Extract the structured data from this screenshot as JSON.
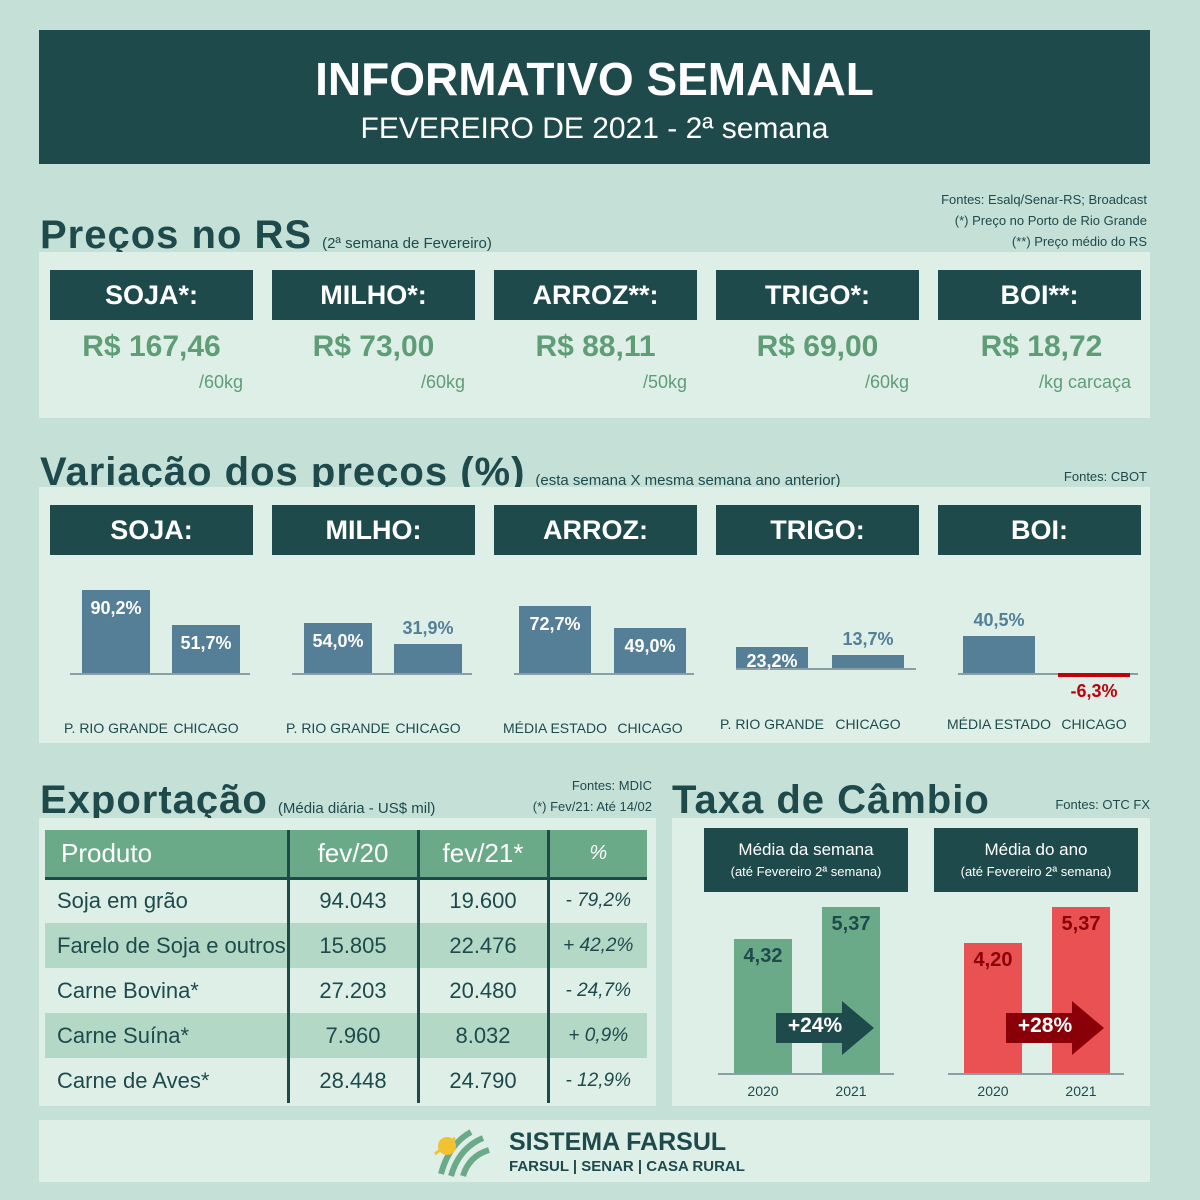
{
  "header": {
    "title": "INFORMATIVO SEMANAL",
    "subtitle": "FEVEREIRO DE 2021 - 2ª semana"
  },
  "prices": {
    "title": "Preços no RS",
    "note": "(2ª semana de Fevereiro)",
    "sources": [
      "Fontes: Esalq/Senar-RS; Broadcast",
      "(*) Preço no Porto de Rio Grande",
      "(**) Preço médio do RS"
    ],
    "items": [
      {
        "name": "SOJA*:",
        "price": "R$ 167,46",
        "unit": "/60kg"
      },
      {
        "name": "MILHO*:",
        "price": "R$ 73,00",
        "unit": "/60kg"
      },
      {
        "name": "ARROZ**:",
        "price": "R$ 88,11",
        "unit": "/50kg"
      },
      {
        "name": "TRIGO*:",
        "price": "R$ 69,00",
        "unit": "/60kg"
      },
      {
        "name": "BOI**:",
        "price": "R$ 18,72",
        "unit": "/kg carcaça"
      }
    ]
  },
  "variation": {
    "title": "Variação dos preços (%)",
    "note": "(esta semana X mesma semana ano anterior)",
    "source": "Fontes: CBOT"
  },
  "chart_data": {
    "type": "bar",
    "groups": [
      {
        "name": "SOJA:",
        "categories": [
          "P. RIO GRANDE",
          "CHICAGO"
        ],
        "values": [
          90.2,
          51.7
        ],
        "labels": [
          "90,2%",
          "51,7%"
        ]
      },
      {
        "name": "MILHO:",
        "categories": [
          "P. RIO GRANDE",
          "CHICAGO"
        ],
        "values": [
          54.0,
          31.9
        ],
        "labels": [
          "54,0%",
          "31,9%"
        ]
      },
      {
        "name": "ARROZ:",
        "categories": [
          "MÉDIA ESTADO",
          "CHICAGO"
        ],
        "values": [
          72.7,
          49.0
        ],
        "labels": [
          "72,7%",
          "49,0%"
        ]
      },
      {
        "name": "TRIGO:",
        "categories": [
          "P. RIO GRANDE",
          "CHICAGO"
        ],
        "values": [
          23.2,
          13.7
        ],
        "labels": [
          "23,2%",
          "13,7%"
        ]
      },
      {
        "name": "BOI:",
        "categories": [
          "MÉDIA ESTADO",
          "CHICAGO"
        ],
        "values": [
          40.5,
          -6.3
        ],
        "labels": [
          "40,5%",
          "-6,3%"
        ]
      }
    ]
  },
  "export": {
    "title": "Exportação",
    "note": "(Média diária - US$ mil)",
    "sources": [
      "Fontes: MDIC",
      "(*) Fev/21: Até 14/02"
    ],
    "columns": [
      "Produto",
      "fev/20",
      "fev/21*",
      "%"
    ],
    "rows": [
      [
        "Soja em grão",
        "94.043",
        "19.600",
        "- 79,2%"
      ],
      [
        "Farelo de Soja e outros",
        "15.805",
        "22.476",
        "+ 42,2%"
      ],
      [
        "Carne Bovina*",
        "27.203",
        "20.480",
        "- 24,7%"
      ],
      [
        "Carne Suína*",
        "7.960",
        "8.032",
        "+ 0,9%"
      ],
      [
        "Carne de Aves*",
        "28.448",
        "24.790",
        "- 12,9%"
      ]
    ]
  },
  "exchange": {
    "title": "Taxa de Câmbio",
    "source": "Fontes: OTC FX",
    "charts": [
      {
        "title": "Média da semana",
        "subtitle": "(até Fevereiro 2ª semana)",
        "years": [
          "2020",
          "2021"
        ],
        "values": [
          4.32,
          5.37
        ],
        "labels": [
          "4,32",
          "5,37"
        ],
        "change": "+24%",
        "color": "#6aaa88",
        "arrow_color": "#1e4a4c"
      },
      {
        "title": "Média do ano",
        "subtitle": "(até Fevereiro  2ª semana)",
        "years": [
          "2020",
          "2021"
        ],
        "values": [
          4.2,
          5.37
        ],
        "labels": [
          "4,20",
          "5,37"
        ],
        "change": "+28%",
        "color": "#ea5153",
        "arrow_color": "#8a0008"
      }
    ]
  },
  "footer": {
    "brand": "SISTEMA FARSUL",
    "tagline": "FARSUL | SENAR | CASA RURAL"
  }
}
